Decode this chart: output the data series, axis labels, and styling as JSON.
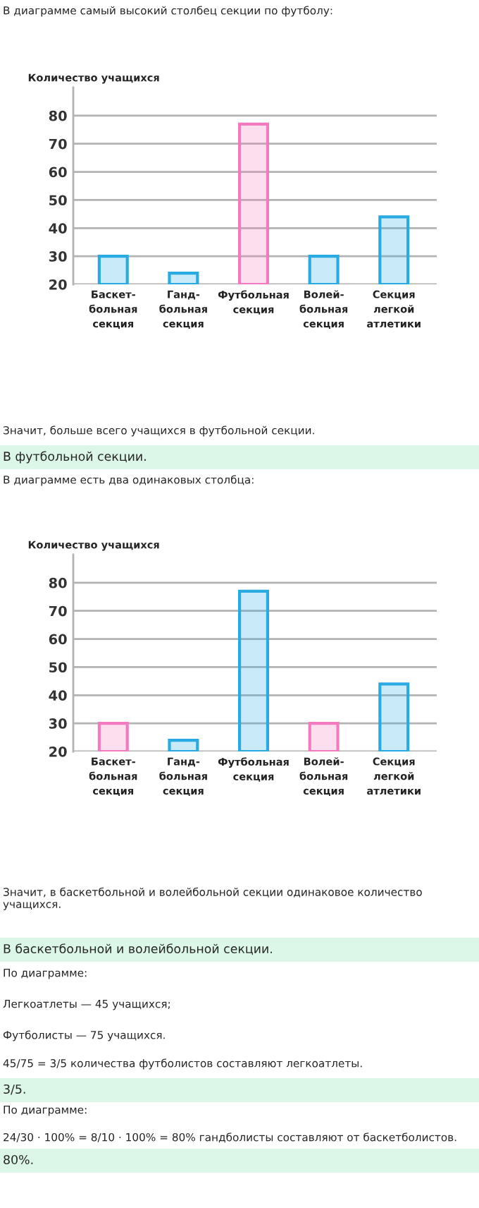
{
  "chart_data": [
    {
      "type": "bar",
      "title": "В диаграмме самый высокий столбец секции по футболу:",
      "ylabel": "Количество учащихся",
      "categories": [
        "Баскет-\nбольная\nсекция",
        "Ганд-\nбольная\nсекция",
        "Футбольная\nсекция",
        "Волей-\nбольная\nсекция",
        "Секция\nлегкой\nатлетики"
      ],
      "values": [
        30,
        24,
        77,
        30,
        44
      ],
      "colors": [
        "#29abe2",
        "#29abe2",
        "#f27ac0",
        "#29abe2",
        "#29abe2"
      ],
      "ylim": [
        20,
        90
      ],
      "yticks": [
        20,
        30,
        40,
        50,
        60,
        70,
        80
      ],
      "grid": "y",
      "annotations": [
        "Значит, больше всего учащихся в футбольной секции.",
        "В футбольной секции."
      ]
    },
    {
      "type": "bar",
      "title": "В диаграмме есть два одинаковых столбца:",
      "ylabel": "Количество учащихся",
      "categories": [
        "Баскет-\nбольная\nсекция",
        "Ганд-\nбольная\nсекция",
        "Футбольная\nсекция",
        "Волей-\nбольная\nсекция",
        "Секция\nлегкой\nатлетики"
      ],
      "values": [
        30,
        24,
        77,
        30,
        44
      ],
      "colors": [
        "#f27ac0",
        "#29abe2",
        "#29abe2",
        "#f27ac0",
        "#29abe2"
      ],
      "ylim": [
        20,
        90
      ],
      "yticks": [
        20,
        30,
        40,
        50,
        60,
        70,
        80
      ],
      "grid": "y",
      "annotations": [
        "Значит, в баскетбольной и волейбольной секции одинаковое количество учащихся.",
        "В баскетбольной и волейбольной секции.",
        "По диаграмме:",
        "Легкоатлеты — 45 учащихся;",
        "Футболисты — 75 учащихся.",
        "45/75 = 3/5 количества футболистов составляют легкоатлеты.",
        "3/5.",
        "По диаграмме:",
        "24/30 · 100% = 8/10 · 100% = 80% гандболисты составляют от баскетболистов.",
        "80%."
      ]
    }
  ]
}
